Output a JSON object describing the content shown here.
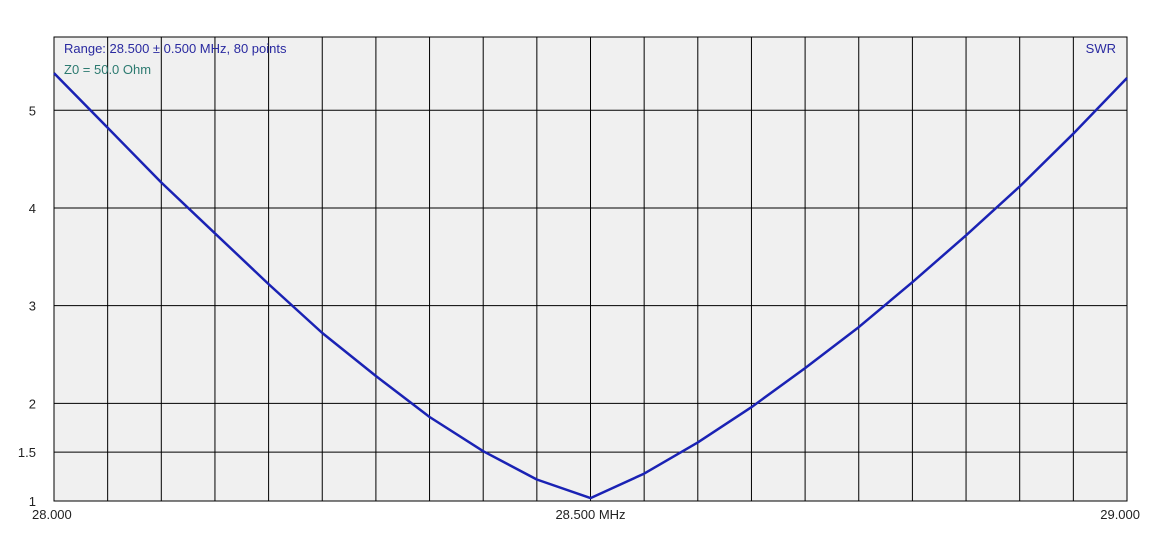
{
  "header": {
    "range_text": "Range: 28.500 ± 0.500 MHz, 80 points",
    "z0_text": "Z0 = 50.0 Ohm",
    "series_label": "SWR"
  },
  "colors": {
    "line": "#1a22b4",
    "range_text": "#2a2aa0",
    "z0_text": "#2c7a70",
    "plot_bg": "#f0f0f0",
    "grid": "#000000"
  },
  "chart_data": {
    "type": "line",
    "title": "",
    "xlabel": "",
    "ylabel": "",
    "xlim": [
      28.0,
      29.0
    ],
    "ylim": [
      1,
      5.75
    ],
    "x_tick_labels": [
      {
        "value": 28.0,
        "label": "28.000"
      },
      {
        "value": 28.5,
        "label": "28.500 MHz"
      },
      {
        "value": 29.0,
        "label": "29.000"
      }
    ],
    "y_tick_labels": [
      {
        "value": 1,
        "label": "1"
      },
      {
        "value": 1.5,
        "label": "1.5"
      },
      {
        "value": 2,
        "label": "2"
      },
      {
        "value": 3,
        "label": "3"
      },
      {
        "value": 4,
        "label": "4"
      },
      {
        "value": 5,
        "label": "5"
      }
    ],
    "x_grid_count": 20,
    "grid": true,
    "series": [
      {
        "name": "SWR",
        "x": [
          28.0,
          28.05,
          28.1,
          28.15,
          28.2,
          28.25,
          28.3,
          28.35,
          28.4,
          28.45,
          28.5,
          28.55,
          28.6,
          28.65,
          28.7,
          28.75,
          28.8,
          28.85,
          28.9,
          28.95,
          29.0
        ],
        "y": [
          5.38,
          4.82,
          4.26,
          3.74,
          3.22,
          2.72,
          2.28,
          1.86,
          1.51,
          1.22,
          1.03,
          1.28,
          1.6,
          1.96,
          2.36,
          2.78,
          3.24,
          3.72,
          4.22,
          4.76,
          5.33
        ]
      }
    ]
  }
}
